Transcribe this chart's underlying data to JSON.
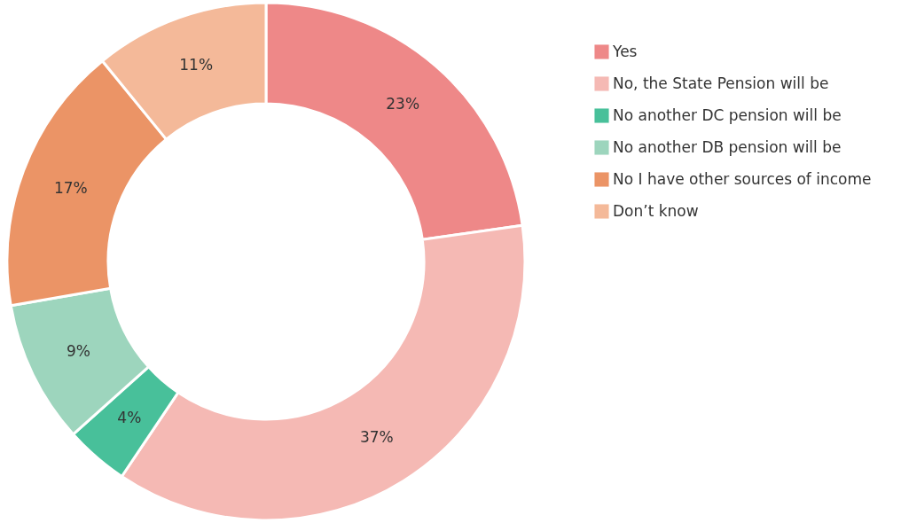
{
  "chart_data": {
    "type": "donut",
    "categories": [
      "Yes",
      "No, the State Pension will be",
      "No another DC pension will be",
      "No another DB pension will be",
      "No I have other sources of income",
      "Don’t know"
    ],
    "values": [
      23,
      37,
      4,
      9,
      17,
      11
    ],
    "value_labels": [
      "23%",
      "37%",
      "4%",
      "9%",
      "17%",
      "11%"
    ],
    "colors": [
      "#ee8888",
      "#f5b9b4",
      "#48c09a",
      "#9dd5bd",
      "#eb9466",
      "#f4b999"
    ],
    "legend": "right"
  }
}
